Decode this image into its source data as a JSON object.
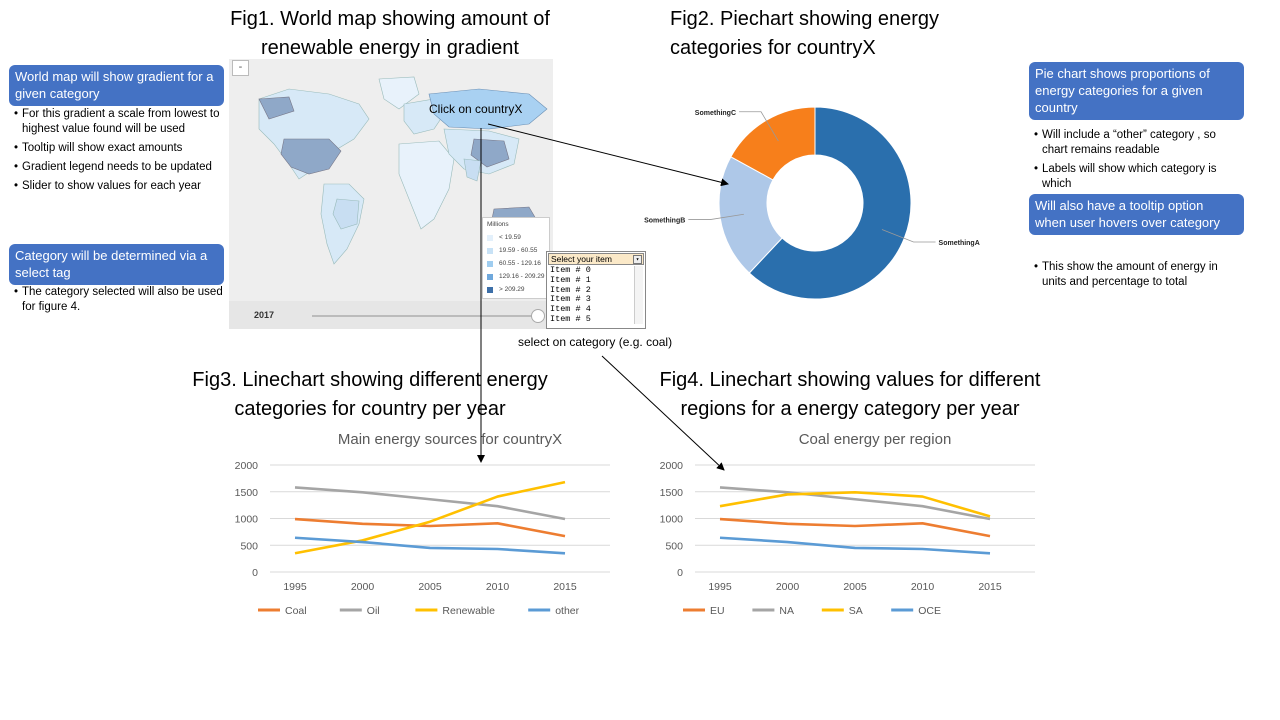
{
  "fig1": {
    "title_line1": "Fig1. World map showing amount of",
    "title_line2": "renewable energy in gradient",
    "map": {
      "zoom_minus": "-",
      "click_label": "Click on countryX",
      "legend_title": "Millions",
      "legend": [
        {
          "label": "< 19.59",
          "color": "#e3f0fb"
        },
        {
          "label": "19.59 - 60.55",
          "color": "#c8e2f6"
        },
        {
          "label": "60.55 - 129.16",
          "color": "#9fcdf0"
        },
        {
          "label": "129.16 - 209.29",
          "color": "#6fa8dc"
        },
        {
          "label": "> 209.29",
          "color": "#3d6fa8"
        }
      ],
      "year": "2017"
    }
  },
  "fig2": {
    "title_line1": "Fig2. Piechart showing energy",
    "title_line2": "categories for countryX",
    "chart_data": {
      "type": "pie",
      "slices": [
        {
          "label": "SomethingA",
          "value": 62,
          "color": "#2a6fad"
        },
        {
          "label": "SomethingB",
          "value": 21,
          "color": "#aec8e8"
        },
        {
          "label": "SomethingC",
          "value": 17,
          "color": "#f77f1b"
        }
      ]
    }
  },
  "fig3": {
    "title_line1": "Fig3. Linechart showing different energy",
    "title_line2": "categories for country per year",
    "chart_data": {
      "type": "line",
      "title": "Main energy sources for countryX",
      "x": [
        1995,
        2000,
        2005,
        2010,
        2015
      ],
      "ylim": [
        0,
        2000
      ],
      "yticks": [
        0,
        500,
        1000,
        1500,
        2000
      ],
      "series": [
        {
          "name": "Coal",
          "values": [
            990,
            900,
            860,
            910,
            670
          ],
          "color": "#ed7d31"
        },
        {
          "name": "Oil",
          "values": [
            1580,
            1490,
            1360,
            1230,
            990
          ],
          "color": "#a5a5a5"
        },
        {
          "name": "Renewable",
          "values": [
            350,
            590,
            940,
            1410,
            1680
          ],
          "color": "#ffc000"
        },
        {
          "name": "other",
          "values": [
            640,
            560,
            450,
            430,
            350
          ],
          "color": "#5b9bd5"
        }
      ]
    }
  },
  "fig4": {
    "title_line1": "Fig4. Linechart showing values for different",
    "title_line2": "regions for a energy category per year",
    "chart_data": {
      "type": "line",
      "title": "Coal energy per region",
      "x": [
        1995,
        2000,
        2005,
        2010,
        2015
      ],
      "ylim": [
        0,
        2000
      ],
      "yticks": [
        0,
        500,
        1000,
        1500,
        2000
      ],
      "series": [
        {
          "name": "EU",
          "values": [
            990,
            900,
            860,
            910,
            670
          ],
          "color": "#ed7d31"
        },
        {
          "name": "NA",
          "values": [
            1580,
            1490,
            1360,
            1230,
            990
          ],
          "color": "#a5a5a5"
        },
        {
          "name": "SA",
          "values": [
            1230,
            1450,
            1490,
            1410,
            1040
          ],
          "color": "#ffc000"
        },
        {
          "name": "OCE",
          "values": [
            640,
            560,
            450,
            430,
            350
          ],
          "color": "#5b9bd5"
        }
      ]
    }
  },
  "left_notes": {
    "callout1": "World map will show gradient for a given category",
    "bullets1": [
      "For this gradient a scale from lowest to highest value found will be used",
      "Tooltip will show exact amounts",
      "Gradient legend needs to be updated",
      "Slider to show values for each year"
    ],
    "callout2": "Category will be determined via a select tag",
    "bullets2": [
      "The category selected will also be used for figure 4."
    ]
  },
  "right_notes": {
    "callout1": "Pie chart shows proportions  of energy categories for a given country",
    "bullets1": [
      "Will include a “other” category , so chart remains readable",
      "Labels will show which category is which"
    ],
    "callout2": "Will also have a tooltip option when user hovers over category",
    "bullets2": [
      "This show the amount of energy in units and percentage to total"
    ]
  },
  "select": {
    "header": "Select your item",
    "items": [
      "Item # 0",
      "Item # 1",
      "Item # 2",
      "Item # 3",
      "Item # 4",
      "Item # 5"
    ],
    "caption": "select on category (e.g. coal)"
  }
}
